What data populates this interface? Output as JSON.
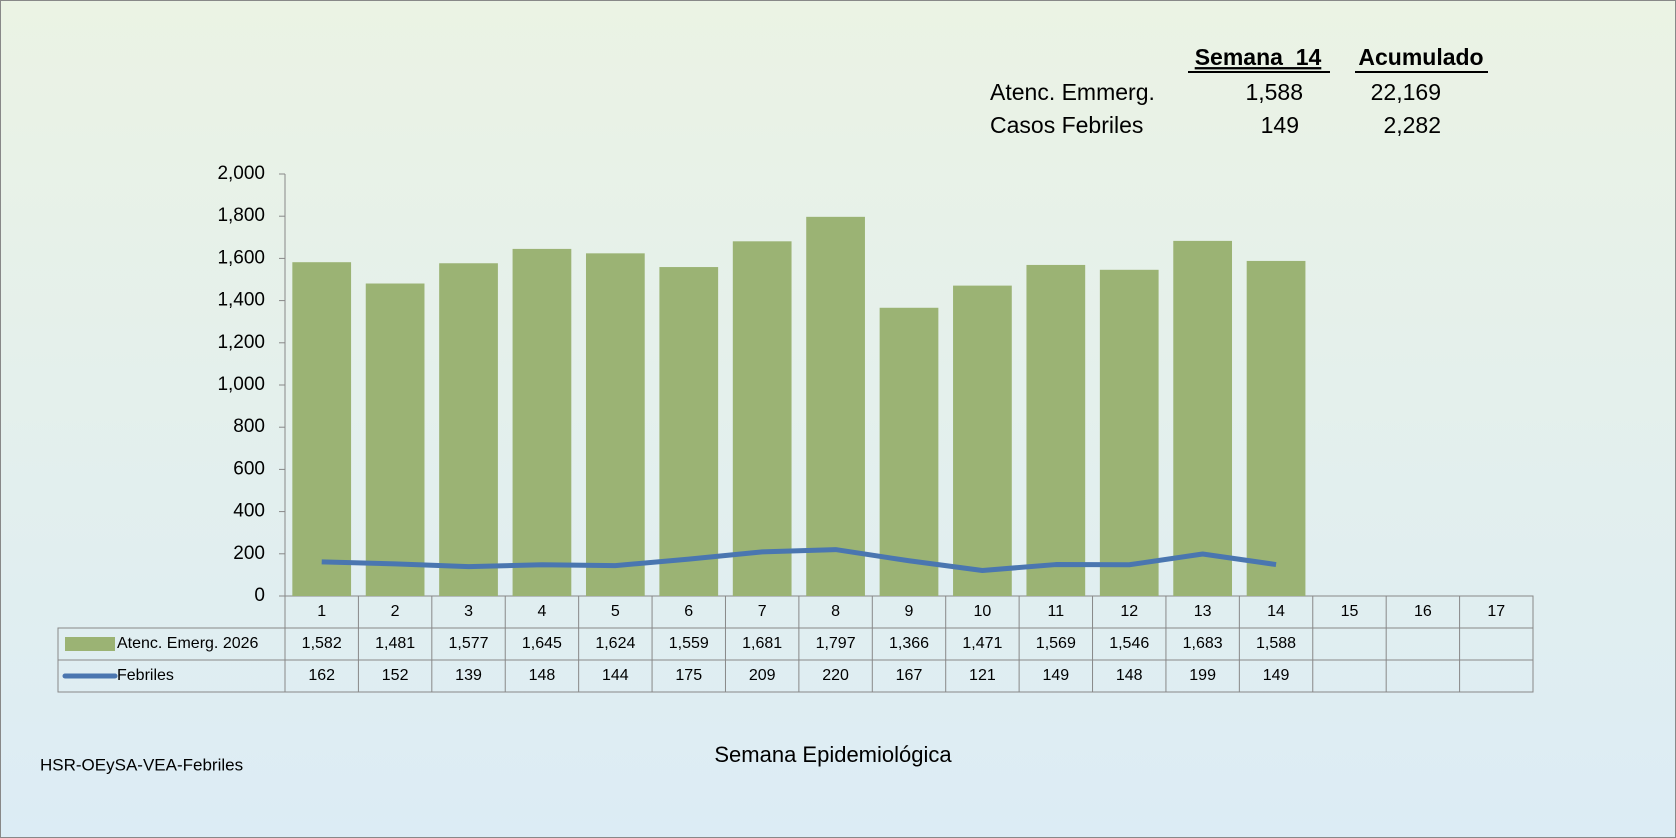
{
  "chart_data": {
    "type": "bar",
    "xlabel": "Semana Epidemiológica",
    "footer": "HSR-OEySA-VEA-Febriles",
    "categories": [
      "1",
      "2",
      "3",
      "4",
      "5",
      "6",
      "7",
      "8",
      "9",
      "10",
      "11",
      "12",
      "13",
      "14",
      "15",
      "16",
      "17"
    ],
    "series": [
      {
        "name": "Atenc. Emerg. 2026",
        "type": "bar",
        "color": "#9bb374",
        "values": [
          1582,
          1481,
          1577,
          1645,
          1624,
          1559,
          1681,
          1797,
          1366,
          1471,
          1569,
          1546,
          1683,
          1588,
          null,
          null,
          null
        ],
        "value_labels": [
          "1,582",
          "1,481",
          "1,577",
          "1,645",
          "1,624",
          "1,559",
          "1,681",
          "1,797",
          "1,366",
          "1,471",
          "1,569",
          "1,546",
          "1,683",
          "1,588",
          null,
          null,
          null
        ]
      },
      {
        "name": "Febriles",
        "type": "line",
        "color": "#4a76b0",
        "values": [
          162,
          152,
          139,
          148,
          144,
          175,
          209,
          220,
          167,
          121,
          149,
          148,
          199,
          149,
          null,
          null,
          null
        ]
      }
    ],
    "ylim": [
      0,
      2000
    ],
    "yticks": [
      0,
      200,
      400,
      600,
      800,
      {
        "value": 1000,
        "label": "1,000"
      },
      {
        "value": 1200,
        "label": "1,200"
      },
      {
        "value": 1400,
        "label": "1,400"
      },
      {
        "value": 1600,
        "label": "1,600"
      },
      {
        "value": 1800,
        "label": "1,800"
      },
      {
        "value": 2000,
        "label": "2,000"
      }
    ],
    "summary": {
      "headers": [
        "Semana  14",
        "Acumulado"
      ],
      "rows": [
        {
          "label": "Atenc. Emmerg.",
          "values": [
            1588,
            22169
          ],
          "value_labels": [
            "1,588",
            "22,169"
          ]
        },
        {
          "label": "Casos Febriles",
          "values": [
            149,
            2282
          ],
          "value_labels": [
            "149",
            "2,282"
          ]
        }
      ]
    }
  }
}
